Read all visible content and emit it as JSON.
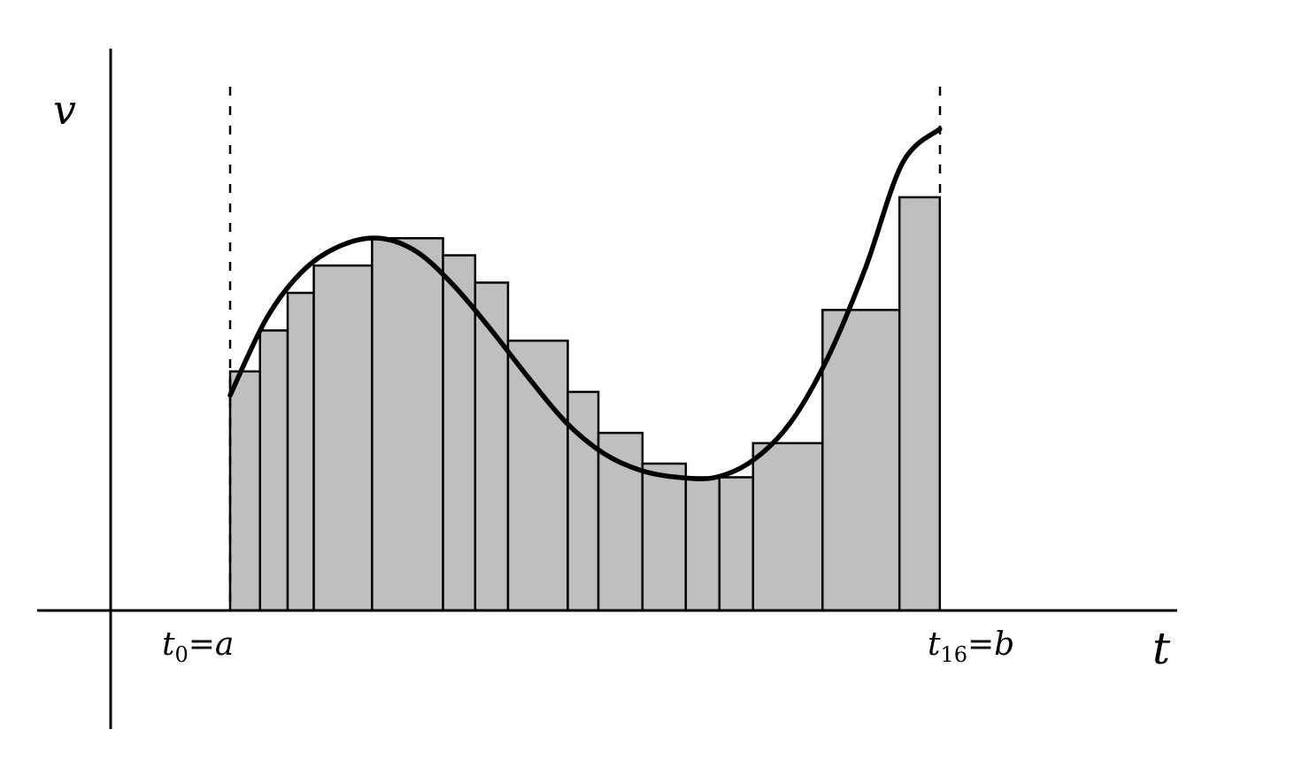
{
  "labels": {
    "v_axis": "v",
    "t_axis": "t",
    "left_t": "t",
    "left_sub": "0",
    "left_rest": "=a",
    "right_t": "t",
    "right_sub": "16",
    "right_rest": "=b"
  },
  "colors": {
    "bar_fill": "#bfbfbf",
    "stroke": "#000000",
    "background": "#ffffff"
  },
  "chart_data": {
    "type": "bar",
    "description_free": true,
    "partition_count": 16,
    "t": [
      0.0,
      0.4,
      0.77,
      1.12,
      1.9,
      2.85,
      3.28,
      3.72,
      4.52,
      4.93,
      5.52,
      6.1,
      6.55,
      7.0,
      7.93,
      8.96,
      9.5
    ],
    "v": [
      0.7,
      0.82,
      0.93,
      1.01,
      1.09,
      1.04,
      0.96,
      0.79,
      0.64,
      0.52,
      0.43,
      0.39,
      0.39,
      0.49,
      0.88,
      1.21
    ],
    "curve_t": [
      0.0,
      0.5,
      1.0,
      1.5,
      2.0,
      2.5,
      3.0,
      3.5,
      4.0,
      4.5,
      5.0,
      5.5,
      6.0,
      6.5,
      7.0,
      7.5,
      8.0,
      8.5,
      9.0,
      9.5
    ],
    "curve_v": [
      0.63,
      0.86,
      1.0,
      1.07,
      1.09,
      1.05,
      0.95,
      0.82,
      0.68,
      0.55,
      0.46,
      0.41,
      0.39,
      0.39,
      0.44,
      0.55,
      0.74,
      1.0,
      1.31,
      1.41
    ],
    "xlim": [
      -1.6,
      14.1
    ],
    "ylim": [
      -0.35,
      1.65
    ],
    "grid": false
  }
}
